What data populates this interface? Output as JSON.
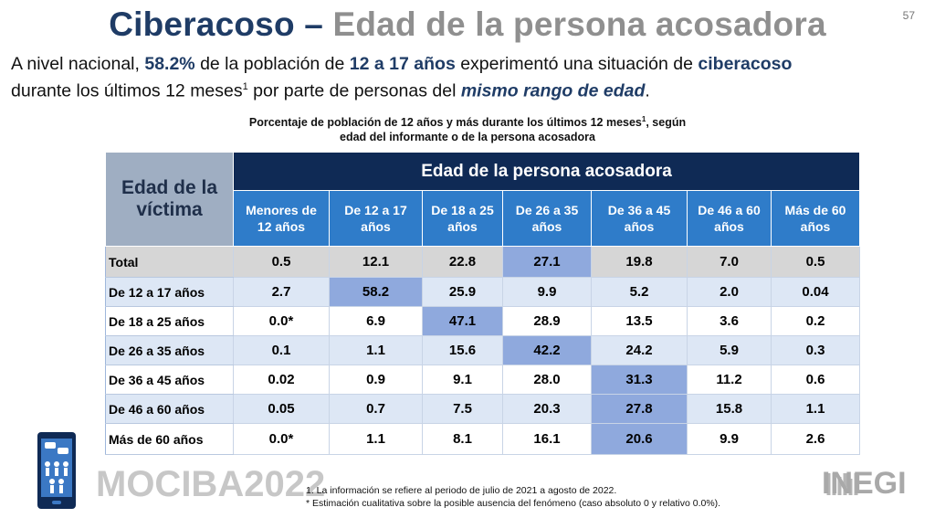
{
  "page": {
    "title_main": "Ciberacoso –",
    "title_sub": "Edad de la persona acosadora",
    "page_number": "57"
  },
  "intro": {
    "p1": "A nivel nacional, ",
    "pct": "58.2%",
    "p2": " de la población de ",
    "age": "12 a 17 años",
    "p3": " experimentó una situación de ",
    "term": "ciberacoso",
    "p4": "durante los últimos 12 meses",
    "sup": "1",
    "p5": " por parte de personas del ",
    "same": "mismo rango de edad",
    "p6": "."
  },
  "caption": {
    "line1": "Porcentaje de población de 12 años y más durante los últimos 12 meses",
    "sup": "1",
    "line1_end": ", según",
    "line2": "edad del informante o de la persona acosadora"
  },
  "table": {
    "corner": "Edad de la víctima",
    "group_header": "Edad de la persona acosadora",
    "columns": [
      [
        "Menores de",
        "12 años"
      ],
      [
        "De 12 a 17",
        "años"
      ],
      [
        "De 18 a 25",
        "años"
      ],
      [
        "De 26 a 35",
        "años"
      ],
      [
        "De 36 a 45",
        "años"
      ],
      [
        "De 46 a 60",
        "años"
      ],
      [
        "Más de 60",
        "años"
      ]
    ],
    "rows": [
      {
        "label": "Total",
        "values": [
          "0.5",
          "12.1",
          "22.8",
          "27.1",
          "19.8",
          "7.0",
          "0.5"
        ],
        "highlight": 3
      },
      {
        "label": "De 12 a 17 años",
        "values": [
          "2.7",
          "58.2",
          "25.9",
          "9.9",
          "5.2",
          "2.0",
          "0.04"
        ],
        "highlight": 1
      },
      {
        "label": "De 18 a 25 años",
        "values": [
          "0.0*",
          "6.9",
          "47.1",
          "28.9",
          "13.5",
          "3.6",
          "0.2"
        ],
        "highlight": 2
      },
      {
        "label": "De 26 a 35 años",
        "values": [
          "0.1",
          "1.1",
          "15.6",
          "42.2",
          "24.2",
          "5.9",
          "0.3"
        ],
        "highlight": 3
      },
      {
        "label": "De 36 a 45 años",
        "values": [
          "0.02",
          "0.9",
          "9.1",
          "28.0",
          "31.3",
          "11.2",
          "0.6"
        ],
        "highlight": 4
      },
      {
        "label": "De 46 a 60 años",
        "values": [
          "0.05",
          "0.7",
          "7.5",
          "20.3",
          "27.8",
          "15.8",
          "1.1"
        ],
        "highlight": 4
      },
      {
        "label": "Más de 60 años",
        "values": [
          "0.0*",
          "1.1",
          "8.1",
          "16.1",
          "20.6",
          "9.9",
          "2.6"
        ],
        "highlight": 4
      }
    ]
  },
  "footer": {
    "brand": "MOCIBA2022",
    "note1": "1. La información se refiere al periodo de julio de 2021 a agosto de 2022.",
    "note2": "* Estimación cualitativa sobre la posible ausencia del fenómeno (caso absoluto 0 y relativo 0.0%).",
    "inegi": "INEGI"
  },
  "colors": {
    "title_blue": "#1f3c66",
    "title_gray": "#8f8f8f",
    "header_dark": "#0f2a55",
    "header_blue": "#2f7cc9",
    "highlight": "#8fa9dd"
  }
}
